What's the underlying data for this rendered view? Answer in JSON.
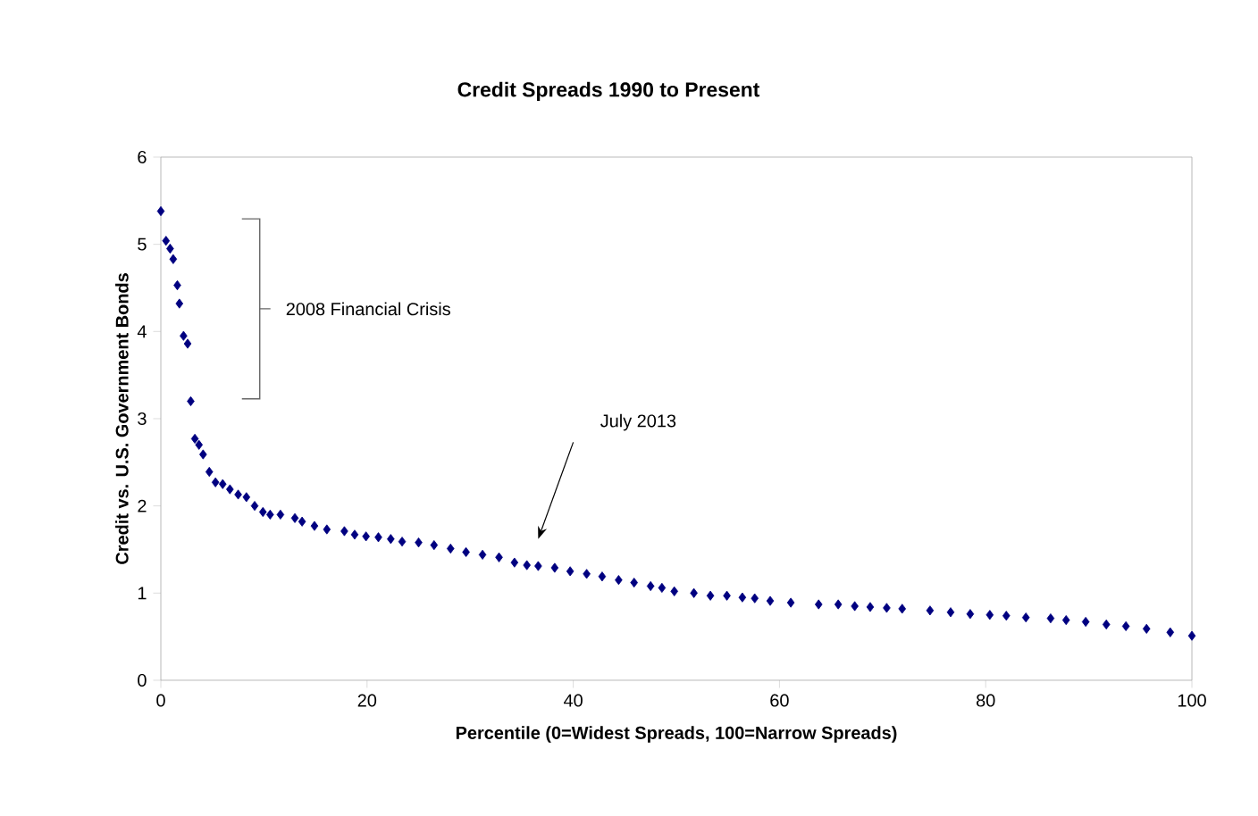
{
  "chart_data": {
    "type": "scatter",
    "title": "Credit Spreads 1990 to Present",
    "xlabel": "Percentile (0=Widest Spreads, 100=Narrow Spreads)",
    "ylabel": "Credit vs. U.S. Government Bonds",
    "xlim": [
      0,
      100
    ],
    "ylim": [
      0,
      6
    ],
    "xticks": [
      0,
      20,
      40,
      60,
      80,
      100
    ],
    "yticks": [
      0,
      1,
      2,
      3,
      4,
      5,
      6
    ],
    "grid": false,
    "marker": "diamond",
    "annotations": [
      "2008 Financial Crisis",
      "July 2013"
    ],
    "series": [
      {
        "color": "#000080",
        "x": [
          0,
          0.5,
          0.9,
          1.2,
          1.6,
          1.8,
          2.2,
          2.6,
          2.9,
          3.3,
          3.7,
          4.1,
          4.7,
          5.3,
          6.0,
          6.7,
          7.5,
          8.3,
          9.1,
          9.9,
          10.6,
          11.6,
          13,
          13.7,
          14.9,
          16.1,
          17.8,
          18.8,
          19.9,
          21.1,
          22.3,
          23.4,
          25,
          26.5,
          28.1,
          29.6,
          31.2,
          32.8,
          34.3,
          35.5,
          36.6,
          38.2,
          39.7,
          41.3,
          42.8,
          44.4,
          45.9,
          47.5,
          48.6,
          49.8,
          51.7,
          53.3,
          54.9,
          56.4,
          57.6,
          59.1,
          61.1,
          63.8,
          65.7,
          67.3,
          68.8,
          70.4,
          71.9,
          74.6,
          76.6,
          78.5,
          80.4,
          82,
          83.9,
          86.3,
          87.8,
          89.7,
          91.7,
          93.6,
          95.6,
          97.9,
          100
        ],
        "values": [
          5.38,
          5.04,
          4.95,
          4.83,
          4.53,
          4.32,
          3.95,
          3.86,
          3.2,
          2.77,
          2.7,
          2.59,
          2.39,
          2.27,
          2.25,
          2.19,
          2.13,
          2.1,
          2.0,
          1.93,
          1.9,
          1.9,
          1.86,
          1.82,
          1.77,
          1.73,
          1.71,
          1.67,
          1.65,
          1.64,
          1.62,
          1.59,
          1.58,
          1.55,
          1.51,
          1.47,
          1.44,
          1.41,
          1.35,
          1.32,
          1.31,
          1.29,
          1.25,
          1.22,
          1.19,
          1.15,
          1.12,
          1.08,
          1.06,
          1.02,
          1.0,
          0.97,
          0.97,
          0.95,
          0.94,
          0.91,
          0.89,
          0.87,
          0.87,
          0.85,
          0.84,
          0.83,
          0.82,
          0.8,
          0.78,
          0.76,
          0.75,
          0.74,
          0.72,
          0.71,
          0.69,
          0.67,
          0.64,
          0.62,
          0.59,
          0.55,
          0.51
        ]
      }
    ]
  }
}
